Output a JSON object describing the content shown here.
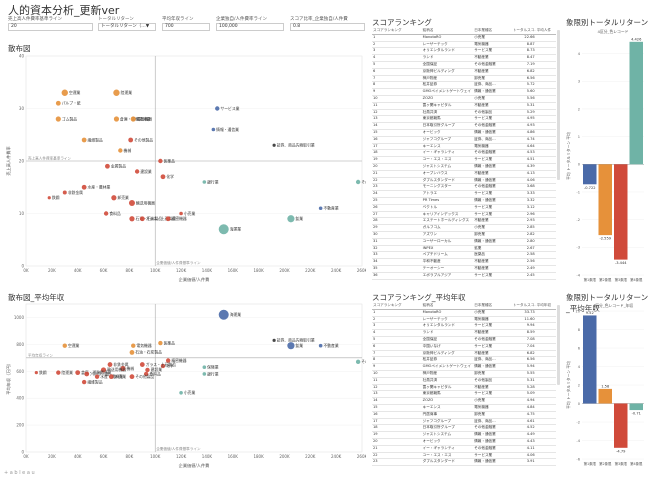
{
  "title": "人的資本分析_更新ver",
  "filters": [
    {
      "label": "売上高人件費率基準ライン",
      "value": "20"
    },
    {
      "label": "トータルリターン",
      "value": "トータルリターン（…▼"
    },
    {
      "label": "平均年収ライン",
      "value": "700"
    },
    {
      "label": "企業独自/人件費率ライン",
      "value": "100,000"
    },
    {
      "label": "スコア比率_企業独自/人件費",
      "value": "0.8"
    }
  ],
  "scatter1": {
    "title": "散布図",
    "xlabel": "企業価値/人件費",
    "ylabel": "売上高人件費率",
    "hline_label": "売上高人件費率基準ライン",
    "vline_label": "企業価値/人件費基準ライン",
    "chart_data": {
      "type": "scatter",
      "xlim": [
        0,
        260
      ],
      "ylim": [
        0,
        40
      ],
      "xticks": [
        "0K",
        "20K",
        "40K",
        "60K",
        "80K",
        "100K",
        "120K",
        "140K",
        "160K",
        "180K",
        "200K",
        "220K",
        "240K",
        "260K"
      ],
      "yticks": [
        "0",
        "10",
        "20",
        "30",
        "40"
      ],
      "hline": 20,
      "vline": 100,
      "points": [
        {
          "label": "空運業",
          "x": 30,
          "y": 33,
          "r": 3.2,
          "color": "#e6913a"
        },
        {
          "label": "陸運業",
          "x": 70,
          "y": 33,
          "r": 3.2,
          "color": "#e6913a"
        },
        {
          "label": "パルプ・紙",
          "x": 25,
          "y": 31,
          "r": 2.4,
          "color": "#e6913a"
        },
        {
          "label": "ゴム製品",
          "x": 25,
          "y": 28,
          "r": 2.6,
          "color": "#e6913a"
        },
        {
          "label": "倉庫・運輸関連業",
          "x": 70,
          "y": 28,
          "r": 2.6,
          "color": "#e6913a"
        },
        {
          "label": "電気機器",
          "x": 83,
          "y": 28,
          "r": 2.6,
          "color": "#e6913a"
        },
        {
          "label": "繊維製品",
          "x": 45,
          "y": 24,
          "r": 2.4,
          "color": "#e6913a"
        },
        {
          "label": "サービス業",
          "x": 148,
          "y": 30,
          "r": 2.2,
          "color": "#4a6aa8"
        },
        {
          "label": "情報・通信業",
          "x": 145,
          "y": 26,
          "r": 1.8,
          "color": "#4a6aa8"
        },
        {
          "label": "証券、商品先物取引業",
          "x": 192,
          "y": 23,
          "r": 1.6,
          "color": "#333"
        },
        {
          "label": "機械",
          "x": 73,
          "y": 22,
          "r": 2.2,
          "color": "#e6913a"
        },
        {
          "label": "その他製品",
          "x": 81,
          "y": 24,
          "r": 2.4,
          "color": "#d04a3a"
        },
        {
          "label": "金属製品",
          "x": 63,
          "y": 19,
          "r": 2.4,
          "color": "#d04a3a"
        },
        {
          "label": "建設業",
          "x": 86,
          "y": 18,
          "r": 2.2,
          "color": "#d04a3a"
        },
        {
          "label": "化学",
          "x": 106,
          "y": 17,
          "r": 2.4,
          "color": "#d04a3a"
        },
        {
          "label": "医薬品",
          "x": 104,
          "y": 20,
          "r": 2.2,
          "color": "#d04a3a"
        },
        {
          "label": "水産・農林業",
          "x": 45,
          "y": 15,
          "r": 2.4,
          "color": "#d04a3a"
        },
        {
          "label": "非鉄金属",
          "x": 30,
          "y": 14,
          "r": 2,
          "color": "#d04a3a"
        },
        {
          "label": "鉄鋼",
          "x": 18,
          "y": 13,
          "r": 1.6,
          "color": "#d04a3a"
        },
        {
          "label": "卸売業",
          "x": 68,
          "y": 13,
          "r": 2.6,
          "color": "#d04a3a"
        },
        {
          "label": "輸送用機器",
          "x": 82,
          "y": 12,
          "r": 3,
          "color": "#d04a3a"
        },
        {
          "label": "銀行業",
          "x": 138,
          "y": 16,
          "r": 1.8,
          "color": "#6fb3a6"
        },
        {
          "label": "その他金融業",
          "x": 257,
          "y": 16,
          "r": 2.2,
          "color": "#6fb3a6"
        },
        {
          "label": "小売業",
          "x": 120,
          "y": 10,
          "r": 1.8,
          "color": "#d04a3a"
        },
        {
          "label": "石油・石炭製品",
          "x": 82,
          "y": 9,
          "r": 2.6,
          "color": "#d04a3a"
        },
        {
          "label": "ガラス・土石製品",
          "x": 90,
          "y": 9,
          "r": 2.4,
          "color": "#d04a3a"
        },
        {
          "label": "精密機器",
          "x": 110,
          "y": 9,
          "r": 2.4,
          "color": "#d04a3a"
        },
        {
          "label": "食料品",
          "x": 62,
          "y": 10,
          "r": 2.2,
          "color": "#d04a3a"
        },
        {
          "label": "海運業",
          "x": 153,
          "y": 7,
          "r": 5,
          "color": "#6fb3a6"
        },
        {
          "label": "鉱業",
          "x": 205,
          "y": 9,
          "r": 3.6,
          "color": "#6fb3a6"
        },
        {
          "label": "不動産業",
          "x": 228,
          "y": 11,
          "r": 1.8,
          "color": "#4a6aa8"
        }
      ]
    }
  },
  "ranking1": {
    "title": "スコアランキング",
    "headers": [
      "スコアランキング",
      "銘柄名",
      "日本業種名",
      "トータルスコ…",
      "平均人件"
    ],
    "rows": [
      [
        "1",
        "MonotaRO",
        "小売業",
        "22.66",
        ""
      ],
      [
        "2",
        "レーザーテック",
        "電気機器",
        "8.87",
        ""
      ],
      [
        "3",
        "オリエンタルランド",
        "サービス業",
        "8.73",
        ""
      ],
      [
        "4",
        "ランド",
        "不動産業",
        "8.47",
        ""
      ],
      [
        "5",
        "全国保証",
        "その他金融業",
        "7.19",
        ""
      ],
      [
        "6",
        "京阪神ビルディング",
        "不動産業",
        "6.82",
        ""
      ],
      [
        "7",
        "神戸物産",
        "卸売業",
        "6.56",
        ""
      ],
      [
        "8",
        "松井証券",
        "証券、商品…",
        "5.72",
        ""
      ],
      [
        "9",
        "GMOペイメントゲートウェイ",
        "情報・通信業",
        "5.60",
        ""
      ],
      [
        "10",
        "ZOZO",
        "小売業",
        "5.56",
        ""
      ],
      [
        "11",
        "霞ヶ関キャピタル",
        "不動産業",
        "5.31",
        ""
      ],
      [
        "12",
        "社員共済",
        "その他製品",
        "5.29",
        ""
      ],
      [
        "13",
        "東京都競馬",
        "サービス業",
        "4.95",
        ""
      ],
      [
        "14",
        "日本取引所グループ",
        "その他金融業",
        "4.93",
        ""
      ],
      [
        "15",
        "オービック",
        "情報・通信業",
        "4.86",
        ""
      ],
      [
        "16",
        "ジャフコグループ",
        "証券、商品…",
        "4.74",
        ""
      ],
      [
        "17",
        "キーエンス",
        "電気機器",
        "4.64",
        ""
      ],
      [
        "18",
        "イー・ギャランティ",
        "その他金融業",
        "4.53",
        ""
      ],
      [
        "19",
        "ユー・エス・エス",
        "サービス業",
        "4.51",
        ""
      ],
      [
        "20",
        "ジャストシステム",
        "情報・通信業",
        "4.39",
        ""
      ],
      [
        "21",
        "オープンハウス",
        "不動産業",
        "4.13",
        ""
      ],
      [
        "22",
        "ダブルスタンダード",
        "情報・通信業",
        "4.06",
        ""
      ],
      [
        "23",
        "モーニングスター",
        "その他金融業",
        "3.68",
        ""
      ],
      [
        "24",
        "アトラエ",
        "サービス業",
        "3.33",
        ""
      ],
      [
        "25",
        "PR Times",
        "情報・通信業",
        "3.32",
        ""
      ],
      [
        "26",
        "ベクトル",
        "サービス業",
        "3.12",
        ""
      ],
      [
        "27",
        "キャリアインデックス",
        "サービス業",
        "2.96",
        ""
      ],
      [
        "28",
        "エステートホールディングス",
        "不動産業",
        "2.93",
        ""
      ],
      [
        "29",
        "ガルフコム",
        "小売業",
        "2.85",
        ""
      ],
      [
        "30",
        "アズワン",
        "卸売業",
        "2.82",
        ""
      ],
      [
        "31",
        "ユーザーローカル",
        "情報・通信業",
        "2.80",
        ""
      ],
      [
        "32",
        "INPEX",
        "鉱業",
        "2.67",
        ""
      ],
      [
        "33",
        "ペプチドリーム",
        "医薬品",
        "2.58",
        ""
      ],
      [
        "34",
        "平和不動産",
        "不動産業",
        "2.56",
        ""
      ],
      [
        "35",
        "テーオーシー",
        "不動産業",
        "2.49",
        ""
      ],
      [
        "36",
        "エボラブルアジア",
        "サービス業",
        "2.45",
        ""
      ]
    ]
  },
  "bar1": {
    "title": "象限別トータルリターン",
    "top_label": "4区分_色レコード",
    "ylabel": "平均 トータルリターン 平均",
    "chart_data": {
      "type": "bar",
      "categories": [
        "第1象限",
        "第2象限",
        "第3象限",
        "第4象限"
      ],
      "values": [
        -0.722,
        -2.559,
        -3.444,
        4.426
      ],
      "value_labels": [
        "-0.722",
        "-2.559",
        "-3.444",
        "4.426"
      ],
      "colors": [
        "#4a6aa8",
        "#e6913a",
        "#d04a3a",
        "#6fb3a6"
      ],
      "ylim": [
        -4,
        4.6
      ],
      "yticks": [
        "-4",
        "-3",
        "-2",
        "-1",
        "0",
        "1",
        "2",
        "3",
        "4"
      ]
    }
  },
  "scatter2": {
    "title": "散布図_平均年収",
    "xlabel": "企業価値/人件費",
    "ylabel": "平均年収（万円）",
    "hline_label": "平均年収ライン",
    "vline_label": "企業価値/人件費基準ライン",
    "chart_data": {
      "type": "scatter",
      "xlim": [
        0,
        260
      ],
      "ylim": [
        0,
        1100
      ],
      "xticks": [
        "0K",
        "20K",
        "40K",
        "60K",
        "80K",
        "100K",
        "120K",
        "140K",
        "160K",
        "180K",
        "200K",
        "220K",
        "240K",
        "260K"
      ],
      "yticks": [
        "0",
        "200",
        "400",
        "600",
        "800",
        "1000"
      ],
      "hline": 700,
      "vline": 100,
      "points": [
        {
          "label": "海運業",
          "x": 153,
          "y": 1020,
          "r": 5,
          "color": "#4a6aa8"
        },
        {
          "label": "証券、商品先物取引業",
          "x": 192,
          "y": 830,
          "r": 1.6,
          "color": "#333"
        },
        {
          "label": "鉱業",
          "x": 205,
          "y": 790,
          "r": 3.6,
          "color": "#4a6aa8"
        },
        {
          "label": "不動産業",
          "x": 228,
          "y": 790,
          "r": 1.8,
          "color": "#4a6aa8"
        },
        {
          "label": "医薬品",
          "x": 104,
          "y": 810,
          "r": 2.2,
          "color": "#e6913a"
        },
        {
          "label": "空運業",
          "x": 30,
          "y": 790,
          "r": 2.2,
          "color": "#e6913a"
        },
        {
          "label": "電気機器",
          "x": 83,
          "y": 790,
          "r": 2.2,
          "color": "#e6913a"
        },
        {
          "label": "石油・石炭製品",
          "x": 82,
          "y": 740,
          "r": 2.4,
          "color": "#e6913a"
        },
        {
          "label": "その他金融業",
          "x": 257,
          "y": 670,
          "r": 2.2,
          "color": "#6fb3a6"
        },
        {
          "label": "精密機器",
          "x": 110,
          "y": 680,
          "r": 2.2,
          "color": "#d04a3a"
        },
        {
          "label": "化学",
          "x": 106,
          "y": 640,
          "r": 2.2,
          "color": "#d04a3a"
        },
        {
          "label": "保険業",
          "x": 138,
          "y": 630,
          "r": 1.8,
          "color": "#6fb3a6"
        },
        {
          "label": "非鉄金属",
          "x": 65,
          "y": 650,
          "r": 2.4,
          "color": "#d04a3a"
        },
        {
          "label": "ガラス・土石製品",
          "x": 90,
          "y": 650,
          "r": 2.4,
          "color": "#d04a3a"
        },
        {
          "label": "機械",
          "x": 75,
          "y": 620,
          "r": 2.6,
          "color": "#d04a3a"
        },
        {
          "label": "輸送用機器",
          "x": 60,
          "y": 610,
          "r": 2.6,
          "color": "#d04a3a"
        },
        {
          "label": "建設業",
          "x": 94,
          "y": 610,
          "r": 2.2,
          "color": "#d04a3a"
        },
        {
          "label": "鉄鋼",
          "x": 8,
          "y": 590,
          "r": 1.6,
          "color": "#d04a3a"
        },
        {
          "label": "陸運業",
          "x": 25,
          "y": 590,
          "r": 2.2,
          "color": "#d04a3a"
        },
        {
          "label": "倉庫・運輸関連業",
          "x": 40,
          "y": 590,
          "r": 2.4,
          "color": "#d04a3a"
        },
        {
          "label": "パルプ・紙",
          "x": 47,
          "y": 580,
          "r": 2.4,
          "color": "#d04a3a"
        },
        {
          "label": "食料品",
          "x": 93,
          "y": 580,
          "r": 2.2,
          "color": "#d04a3a"
        },
        {
          "label": "水産・農林業",
          "x": 55,
          "y": 560,
          "r": 2.2,
          "color": "#d04a3a"
        },
        {
          "label": "卸売業",
          "x": 66,
          "y": 560,
          "r": 2.4,
          "color": "#d04a3a"
        },
        {
          "label": "その他製品",
          "x": 82,
          "y": 560,
          "r": 2.4,
          "color": "#d04a3a"
        },
        {
          "label": "繊維製品",
          "x": 45,
          "y": 520,
          "r": 2.2,
          "color": "#d04a3a"
        },
        {
          "label": "銀行業",
          "x": 138,
          "y": 580,
          "r": 1.8,
          "color": "#6fb3a6"
        },
        {
          "label": "小売業",
          "x": 120,
          "y": 440,
          "r": 1.8,
          "color": "#6fb3a6"
        }
      ]
    }
  },
  "ranking2": {
    "title": "スコアランキング_平均年収",
    "headers": [
      "スコアランキング",
      "銘柄名",
      "日本業種名",
      "トータルスコ…",
      "平均年収"
    ],
    "rows": [
      [
        "1",
        "MonotaRO",
        "小売業",
        "33.73",
        ""
      ],
      [
        "2",
        "レーザーテック",
        "電気機器",
        "11.60",
        ""
      ],
      [
        "3",
        "オリエンタルランド",
        "サービス業",
        "9.94",
        ""
      ],
      [
        "4",
        "ランド",
        "不動産業",
        "8.59",
        ""
      ],
      [
        "5",
        "全国保証",
        "その他金融業",
        "7.08",
        ""
      ],
      [
        "6",
        "中国いなげ",
        "サービス業",
        "7.04",
        ""
      ],
      [
        "7",
        "京阪神ビルディング",
        "不動産業",
        "6.82",
        ""
      ],
      [
        "8",
        "松井証券",
        "証券、商品…",
        "6.56",
        ""
      ],
      [
        "9",
        "GMOペイメントゲートウェイ",
        "情報・通信業",
        "5.94",
        ""
      ],
      [
        "10",
        "神戸物産",
        "卸売業",
        "5.55",
        ""
      ],
      [
        "11",
        "社員共済",
        "その他製品",
        "5.31",
        ""
      ],
      [
        "12",
        "霞ヶ関キャピタル",
        "不動産業",
        "5.28",
        ""
      ],
      [
        "13",
        "東京都競馬",
        "サービス業",
        "5.09",
        ""
      ],
      [
        "14",
        "ZOZO",
        "小売業",
        "4.94",
        ""
      ],
      [
        "15",
        "キーエンス",
        "電気機器",
        "4.84",
        ""
      ],
      [
        "16",
        "円居商事",
        "卸売業",
        "4.75",
        ""
      ],
      [
        "17",
        "ジャフコグループ",
        "証券、商品…",
        "4.61",
        ""
      ],
      [
        "18",
        "日本取引所グループ",
        "その他金融業",
        "4.52",
        ""
      ],
      [
        "19",
        "ジャストシステム",
        "情報・通信業",
        "4.49",
        ""
      ],
      [
        "20",
        "オービック",
        "情報・通信業",
        "4.43",
        ""
      ],
      [
        "21",
        "イー・ギャランティ",
        "その他金融業",
        "4.11",
        ""
      ],
      [
        "22",
        "ユー・エス・エス",
        "サービス業",
        "4.06",
        ""
      ],
      [
        "23",
        "ダブルスタンダード",
        "情報・通信業",
        "3.91",
        ""
      ]
    ]
  },
  "bar2": {
    "title": "象限別トータルリターン_平均年収",
    "top_label": "4区分_色レコード_年収",
    "ylabel": "平均 トータルリターン 平均",
    "chart_data": {
      "type": "bar",
      "categories": [
        "第1象限",
        "第2象限",
        "第3象限",
        "第4象限"
      ],
      "values": [
        9.52,
        1.58,
        -4.79,
        -0.71
      ],
      "value_labels": [
        "9.52",
        "1.58",
        "-4.79",
        "-0.71"
      ],
      "colors": [
        "#4a6aa8",
        "#e6913a",
        "#d04a3a",
        "#6fb3a6"
      ],
      "ylim": [
        -6,
        10
      ],
      "yticks": [
        "-6",
        "-4",
        "-2",
        "0",
        "2",
        "4",
        "6",
        "8",
        "10"
      ]
    }
  },
  "footer": "+ a b l e a u"
}
